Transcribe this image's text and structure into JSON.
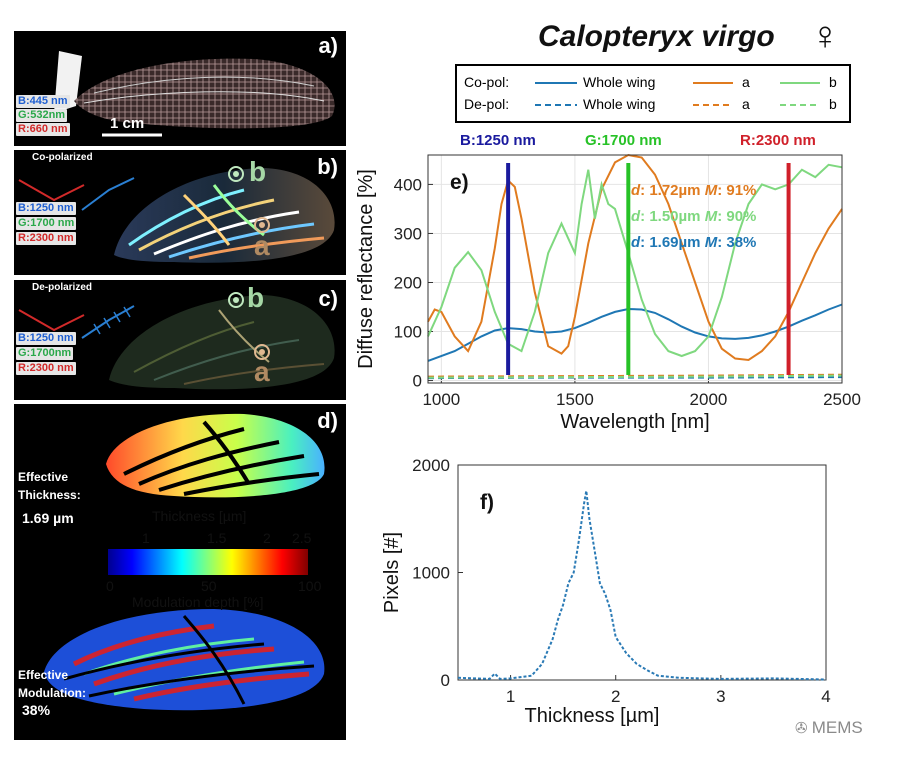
{
  "panels": {
    "a": {
      "label": "a)",
      "channels": [
        {
          "text": "B:445 nm",
          "color": "#1f5fd1"
        },
        {
          "text": "G:532nm",
          "color": "#2aa84a"
        },
        {
          "text": "R:660 nm",
          "color": "#d22a2a"
        }
      ],
      "scale_bar": "1 cm"
    },
    "b": {
      "label": "b)",
      "mode": "Co-polarized",
      "channels": [
        {
          "text": "B:1250 nm",
          "color": "#1f5fd1"
        },
        {
          "text": "G:1700 nm",
          "color": "#2aa84a"
        },
        {
          "text": "R:2300 nm",
          "color": "#d22a2a"
        }
      ],
      "point_b": "b",
      "point_a": "a"
    },
    "c": {
      "label": "c)",
      "mode": "De-polarized",
      "channels": [
        {
          "text": "B:1250 nm",
          "color": "#1f5fd1"
        },
        {
          "text": "G:1700nm",
          "color": "#2aa84a"
        },
        {
          "text": "R:2300 nm",
          "color": "#d22a2a"
        }
      ],
      "point_b": "b",
      "point_a": "a"
    },
    "d": {
      "label": "d)",
      "eff_thickness_label": "Effective Thickness:",
      "eff_thickness_value": "1.69 µm",
      "thickness_title": "Thickness [µm]",
      "thickness_ticks": [
        "1",
        "1.5",
        "2",
        "2.5"
      ],
      "modulation_ticks": [
        "0",
        "50",
        "100"
      ],
      "modulation_title": "Modulation depth [%]",
      "eff_mod_label": "Effective Modulation:",
      "eff_mod_value": "38%"
    }
  },
  "title": "Calopteryx virgo",
  "title_symbol": "♀",
  "legend": {
    "rows": [
      {
        "label": "Co-pol:",
        "items": [
          {
            "text": "Whole wing",
            "color": "#1f77b4",
            "dash": false
          },
          {
            "text": "a",
            "color": "#e07b1f",
            "dash": false
          },
          {
            "text": "b",
            "color": "#7fd87f",
            "dash": false
          }
        ]
      },
      {
        "label": "De-pol:",
        "items": [
          {
            "text": "Whole wing",
            "color": "#1f77b4",
            "dash": true
          },
          {
            "text": "a",
            "color": "#e07b1f",
            "dash": true
          },
          {
            "text": "b",
            "color": "#7fd87f",
            "dash": true
          }
        ]
      }
    ]
  },
  "wavelength_labels": [
    {
      "text": "B:1250 nm",
      "color": "#1a1a9e"
    },
    {
      "text": "G:1700 nm",
      "color": "#27c227"
    },
    {
      "text": "R:2300 nm",
      "color": "#d0202a"
    }
  ],
  "chart_data": [
    {
      "type": "line",
      "panel_label": "e)",
      "xlabel": "Wavelength [nm]",
      "ylabel": "Diffuse reflectance [%]",
      "xlim": [
        950,
        2500
      ],
      "ylim": [
        -5,
        460
      ],
      "xticks": [
        "1000",
        "1500",
        "2000",
        "2500"
      ],
      "yticks": [
        "0",
        "100",
        "200",
        "300",
        "400"
      ],
      "grid": true,
      "vertical_lines": [
        {
          "x": 1250,
          "color": "#1a1a9e"
        },
        {
          "x": 1700,
          "color": "#27c227"
        },
        {
          "x": 2300,
          "color": "#d0202a"
        }
      ],
      "annotations": [
        {
          "d_label": "d",
          "d_value": ": 1.72µm",
          "m_label": "M",
          "m_value": ": 91%",
          "color": "#e07b1f"
        },
        {
          "d_label": "d",
          "d_value": ": 1.50µm",
          "m_label": "M",
          "m_value": ": 90%",
          "color": "#7fd87f"
        },
        {
          "d_label": "d",
          "d_value": ": 1.69µm",
          "m_label": "M",
          "m_value": ": 38%",
          "color": "#1f77b4"
        }
      ],
      "series": [
        {
          "name": "Whole wing",
          "color": "#1f77b4",
          "dash": false,
          "x": [
            950,
            1050,
            1100,
            1150,
            1200,
            1250,
            1300,
            1350,
            1400,
            1450,
            1500,
            1550,
            1600,
            1650,
            1700,
            1750,
            1800,
            1850,
            1900,
            1950,
            2000,
            2050,
            2100,
            2150,
            2200,
            2250,
            2300,
            2350,
            2400,
            2450,
            2500
          ],
          "y": [
            40,
            60,
            75,
            90,
            102,
            107,
            105,
            100,
            98,
            100,
            107,
            118,
            130,
            140,
            146,
            145,
            138,
            125,
            110,
            98,
            90,
            86,
            85,
            87,
            92,
            100,
            110,
            122,
            133,
            145,
            155
          ]
        },
        {
          "name": "a",
          "color": "#e07b1f",
          "dash": false,
          "x": [
            950,
            975,
            1000,
            1050,
            1100,
            1150,
            1200,
            1225,
            1250,
            1275,
            1300,
            1350,
            1400,
            1450,
            1475,
            1500,
            1550,
            1600,
            1650,
            1700,
            1750,
            1800,
            1850,
            1900,
            1950,
            2000,
            2050,
            2100,
            2150,
            2200,
            2250,
            2300,
            2350,
            2400,
            2450,
            2500
          ],
          "y": [
            120,
            145,
            140,
            90,
            60,
            120,
            270,
            360,
            408,
            395,
            330,
            180,
            70,
            55,
            70,
            130,
            280,
            390,
            445,
            460,
            455,
            420,
            360,
            280,
            200,
            120,
            65,
            45,
            42,
            60,
            90,
            140,
            200,
            260,
            310,
            350
          ]
        },
        {
          "name": "b",
          "color": "#7fd87f",
          "dash": false,
          "x": [
            950,
            1000,
            1050,
            1100,
            1150,
            1200,
            1250,
            1300,
            1350,
            1400,
            1450,
            1500,
            1525,
            1550,
            1575,
            1600,
            1625,
            1650,
            1700,
            1750,
            1800,
            1850,
            1900,
            1950,
            2000,
            2050,
            2100,
            2150,
            2200,
            2250,
            2300,
            2350,
            2400,
            2450,
            2500
          ],
          "y": [
            90,
            150,
            230,
            262,
            225,
            140,
            75,
            60,
            140,
            260,
            320,
            260,
            360,
            430,
            330,
            400,
            360,
            350,
            260,
            165,
            95,
            60,
            50,
            60,
            90,
            170,
            280,
            360,
            400,
            390,
            400,
            430,
            415,
            440,
            435
          ]
        },
        {
          "name": "Whole wing",
          "color": "#1f77b4",
          "dash": true,
          "x": [
            950,
            1500,
            2000,
            2500
          ],
          "y": [
            5,
            6,
            6,
            7
          ]
        },
        {
          "name": "a",
          "color": "#e07b1f",
          "dash": true,
          "x": [
            950,
            1500,
            2000,
            2500
          ],
          "y": [
            8,
            9,
            10,
            12
          ]
        },
        {
          "name": "b",
          "color": "#7fd87f",
          "dash": true,
          "x": [
            950,
            1500,
            2000,
            2500
          ],
          "y": [
            6,
            7,
            8,
            10
          ]
        }
      ]
    },
    {
      "type": "line",
      "panel_label": "f)",
      "xlabel": "Thickness [µm]",
      "ylabel": "Pixels [#]",
      "xlim": [
        0.5,
        4
      ],
      "ylim": [
        0,
        2000
      ],
      "xticks": [
        "1",
        "2",
        "3",
        "4"
      ],
      "yticks": [
        "0",
        "1000",
        "2000"
      ],
      "grid": false,
      "series": [
        {
          "color": "#2a7ab5",
          "dash": true,
          "x": [
            0.5,
            0.8,
            0.85,
            0.9,
            1.0,
            1.2,
            1.3,
            1.4,
            1.45,
            1.5,
            1.55,
            1.6,
            1.65,
            1.7,
            1.72,
            1.75,
            1.8,
            1.85,
            1.9,
            1.95,
            2.0,
            2.1,
            2.2,
            2.3,
            2.4,
            2.6,
            3.0,
            3.5,
            4.0
          ],
          "y": [
            20,
            10,
            60,
            10,
            15,
            40,
            150,
            380,
            560,
            700,
            900,
            1000,
            1300,
            1650,
            1760,
            1500,
            1200,
            900,
            800,
            650,
            400,
            250,
            150,
            90,
            40,
            20,
            10,
            15,
            5
          ]
        }
      ]
    }
  ],
  "watermark": "MEMS"
}
